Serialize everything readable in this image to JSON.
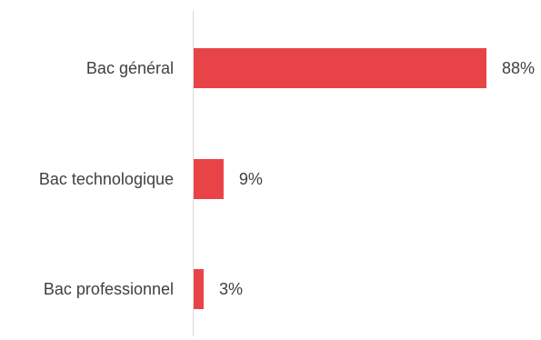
{
  "chart_data": {
    "type": "bar",
    "orientation": "horizontal",
    "categories": [
      "Bac général",
      "Bac technologique",
      "Bac professionnel"
    ],
    "values": [
      88,
      9,
      3
    ],
    "value_labels": [
      "88%",
      "9%",
      "3%"
    ],
    "unit": "%",
    "xlim": [
      0,
      100
    ],
    "grid": false,
    "legend": "none",
    "bar_color": "#e84448",
    "axis_color": "#d9d9d9",
    "text_color": "#404040"
  }
}
